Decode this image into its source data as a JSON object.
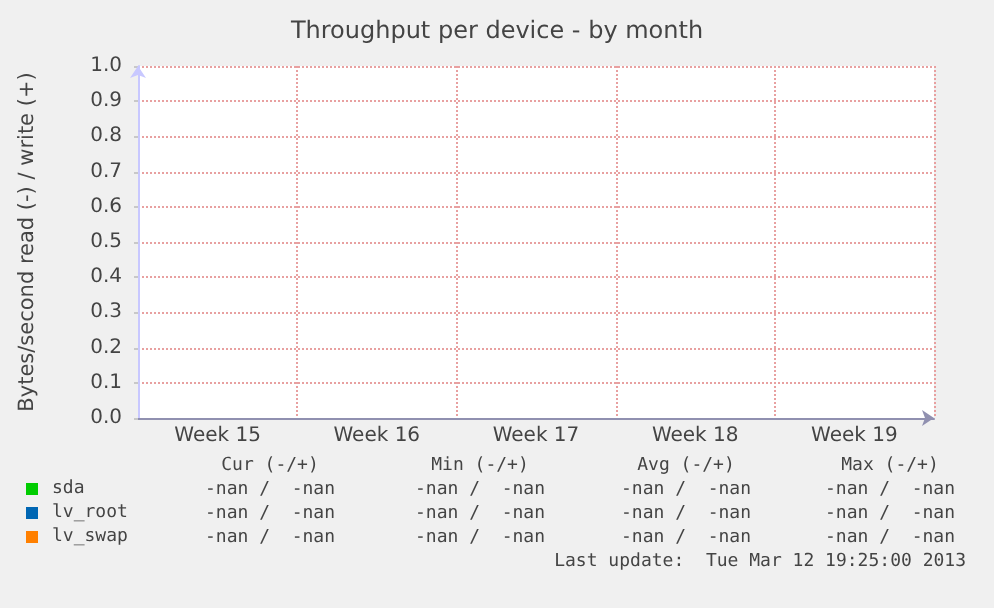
{
  "chart_data": {
    "type": "line",
    "title": "Throughput per device - by month",
    "ylabel": "Bytes/second read (-) / write (+)",
    "categories": [
      "Week 15",
      "Week 16",
      "Week 17",
      "Week 18",
      "Week 19"
    ],
    "ylim": [
      0,
      1
    ],
    "yticks": [
      {
        "value": 0,
        "label": "0.0"
      },
      {
        "value": 0.1,
        "label": "0.1"
      },
      {
        "value": 0.2,
        "label": "0.2"
      },
      {
        "value": 0.3,
        "label": "0.3"
      },
      {
        "value": 0.4,
        "label": "0.4"
      },
      {
        "value": 0.5,
        "label": "0.5"
      },
      {
        "value": 0.6,
        "label": "0.6"
      },
      {
        "value": 0.7,
        "label": "0.7"
      },
      {
        "value": 0.8,
        "label": "0.8"
      },
      {
        "value": 0.9,
        "label": "0.9"
      },
      {
        "value": 1,
        "label": "1.0"
      }
    ],
    "grid": true,
    "legend": "bottom left",
    "series": [
      {
        "name": "sda",
        "color": "#00cc00",
        "values": [
          null,
          null,
          null,
          null,
          null
        ]
      },
      {
        "name": "lv_root",
        "color": "#0066b3",
        "values": [
          null,
          null,
          null,
          null,
          null
        ]
      },
      {
        "name": "lv_swap",
        "color": "#ff8000",
        "values": [
          null,
          null,
          null,
          null,
          null
        ]
      }
    ],
    "annotations": [
      "Cur (-/+)",
      "Min (-/+)",
      "Avg (-/+)",
      "Max (-/+)",
      "-nan /  -nan",
      "-nan /  -nan",
      "-nan /  -nan",
      "-nan /  -nan",
      "-nan /  -nan",
      "-nan /  -nan",
      "-nan /  -nan",
      "-nan /  -nan",
      "-nan /  -nan",
      "-nan /  -nan",
      "-nan /  -nan",
      "-nan /  -nan",
      "Last update:  Tue Mar 12 19:25:00 2013"
    ]
  }
}
